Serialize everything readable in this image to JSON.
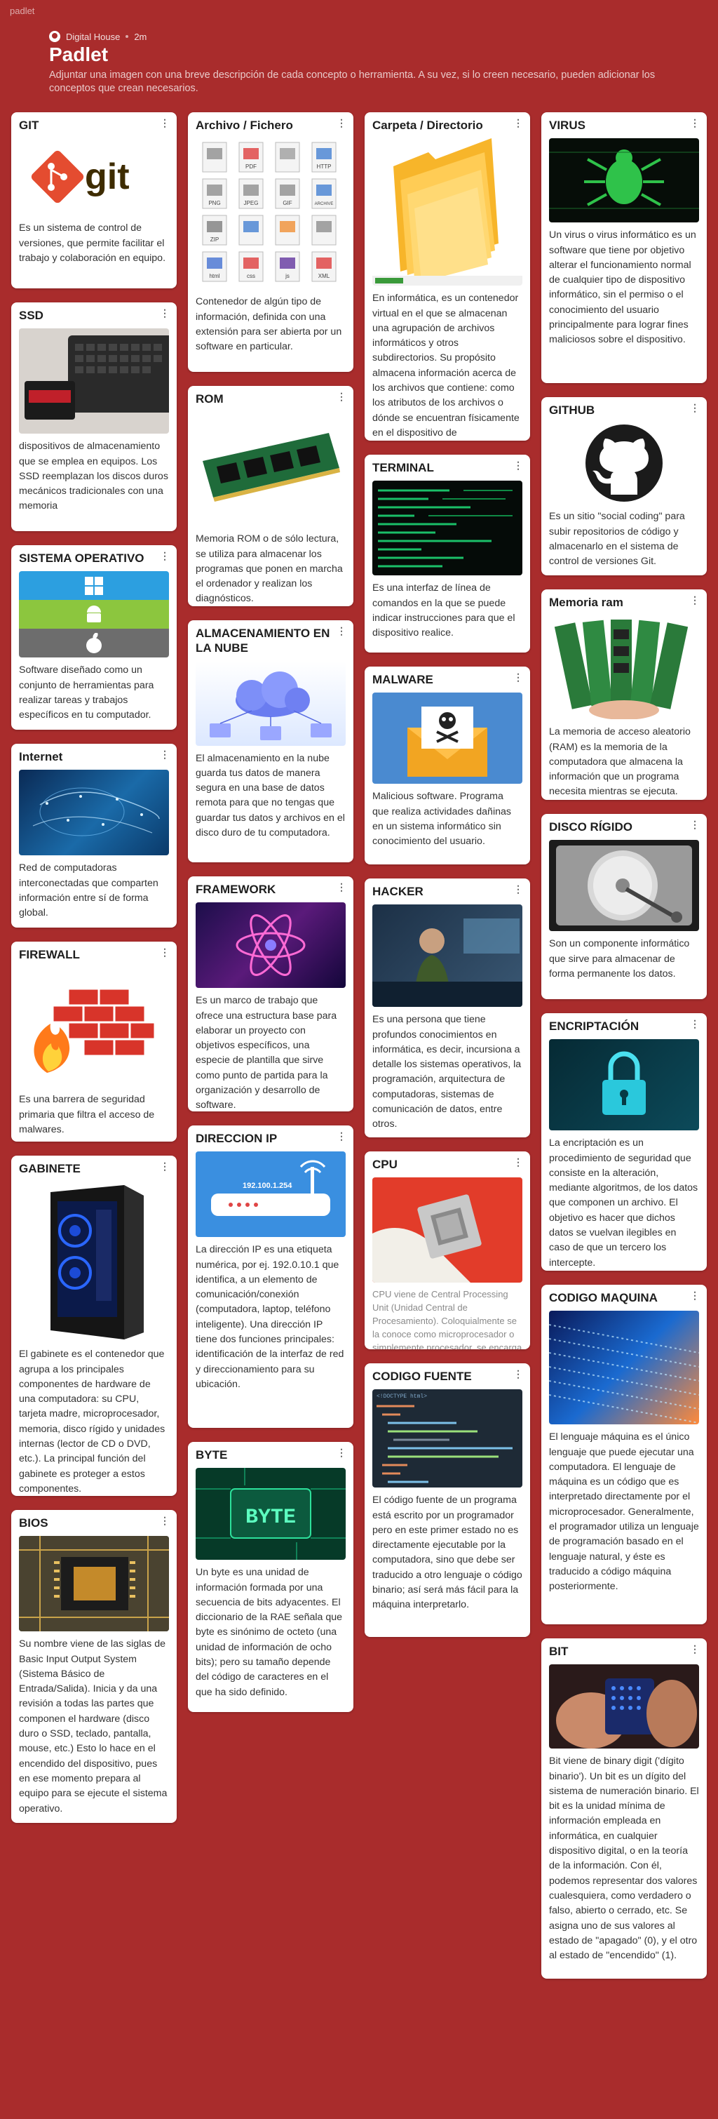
{
  "app": {
    "name": "padlet"
  },
  "header": {
    "author": "Digital House",
    "time": "2m",
    "title": "Padlet",
    "description": "Adjuntar una imagen con una breve descripción de cada concepto o herramienta. A su vez, si lo creen necesario, pueden adicionar los conceptos que crean necesarios."
  },
  "menu_glyph": "⋮",
  "theme": {
    "background": "#a92c2c",
    "card": "#ffffff"
  },
  "columns": [
    [
      {
        "title": "GIT",
        "text": "Es un sistema de control de versiones, que permite facilitar el trabajo y colaboración en equipo.",
        "image_text": "git"
      },
      {
        "title": "SSD",
        "text": " dispositivos de almacenamiento que se emplea en equipos. Los SSD reemplazan los discos duros mecánicos tradicionales con una memoria"
      },
      {
        "title": "SISTEMA OPERATIVO",
        "text": "Software diseñado como un conjunto de herramientas para realizar tareas y trabajos específicos en tu computador."
      },
      {
        "title": "Internet",
        "text": "Red de computadoras interconectadas que comparten información entre sí de forma global."
      },
      {
        "title": "FIREWALL",
        "text": "Es una barrera de seguridad primaria que filtra el acceso de malwares."
      },
      {
        "title": "GABINETE",
        "text": "El gabinete es el contenedor que agrupa a los principales componentes de hardware de una computadora: su CPU, tarjeta madre, microprocesador, memoria, disco rígido y unidades internas (lector de CD o DVD, etc.). La principal función del gabinete es proteger a estos componentes."
      },
      {
        "title": "BIOS",
        "text": "Su nombre viene de las siglas de Basic Input Output System (Sistema Básico de Entrada/Salida). Inicia y da una revisión a todas las partes que componen el hardware (disco duro o SSD, teclado, pantalla, mouse, etc.) Esto lo hace en el encendido del dispositivo, pues en ese momento prepara al equipo para se ejecute el sistema operativo."
      }
    ],
    [
      {
        "title": "Archivo / Fichero",
        "text": "Contenedor de algún tipo de información, definida con una extensión para ser abierta por un software en particular.",
        "file_labels": [
          "",
          "PDF",
          "",
          "HTTP",
          "PNG",
          "JPEG",
          "GIF",
          "ARCHIVE",
          "ZIP",
          "",
          "",
          "",
          "html",
          "css",
          "js",
          "XML"
        ]
      },
      {
        "title": "ROM",
        "text": "Memoria ROM o de sólo lectura, se utiliza para almacenar los programas que ponen en marcha el ordenador y realizan los diagnósticos."
      },
      {
        "title": "ALMACENAMIENTO EN LA NUBE",
        "text": "El almacenamiento en la nube guarda tus datos de manera segura en una base de datos remota para que no tengas que guardar tus datos y archivos en el disco duro de tu computadora."
      },
      {
        "title": "FRAMEWORK",
        "text": "Es un marco de trabajo que ofrece una estructura base para elaborar un proyecto con objetivos específicos, una especie de plantilla que sirve como punto de partida para la organización y desarrollo de software."
      },
      {
        "title": "DIRECCION IP",
        "text": "La dirección IP es una etiqueta numérica, por ej. 192.0.10.1 que identifica,  a un elemento de comunicación/conexión (computadora, laptop, teléfono inteligente). Una dirección IP tiene dos funciones principales: identificación de la interfaz de red y direccionamiento para su ubicación.",
        "image_text": "192.100.1.254"
      },
      {
        "title": "BYTE",
        "text": "Un byte es una unidad de información formada por una secuencia de bits adyacentes. El diccionario de la RAE señala que byte es sinónimo de octeto (una unidad de información de ocho bits); pero su tamaño depende del código de caracteres en el que ha sido definido.",
        "image_text": "BYTE"
      }
    ],
    [
      {
        "title": "Carpeta / Directorio",
        "text": "En informática, es un contenedor virtual en el que se almacenan una agrupación de archivos informáticos y otros subdirectorios. Su propósito almacena información acerca de los archivos que contiene: como los atributos de los archivos o dónde se encuentran físicamente en el dispositivo de almacenamiento."
      },
      {
        "title": "TERMINAL",
        "text": "Es una interfaz de línea de comandos en la que se puede indicar instrucciones para que el dispositivo realice."
      },
      {
        "title": "MALWARE",
        "text": "Malicious software. Programa que realiza actividades dañinas en un sistema informático sin conocimiento del usuario."
      },
      {
        "title": "HACKER",
        "text": "Es una persona que tiene profundos conocimientos en informática, es decir, incursiona a detalle los sistemas operativos, la programación, arquitectura de computadoras, sistemas de comunicación de datos, entre otros."
      },
      {
        "title": "CPU",
        "text": "CPU viene de Central Processing Unit (Unidad Central de Procesamiento). Coloquialmente se la conoce como microprocesador o simplemente procesador. se encarga"
      },
      {
        "title": "CODIGO FUENTE",
        "text": "El código fuente de un programa está escrito por un programador pero en este primer estado no es directamente ejecutable por la computadora, sino que debe ser traducido a otro lenguaje o código binario; así será más fácil para la máquina interpretarlo.",
        "image_text": "<!DOCTYPE html>"
      }
    ],
    [
      {
        "title": "VIRUS",
        "text": "Un virus o virus informático  es un software que tiene por objetivo alterar el funcionamiento normal de cualquier tipo de dispositivo informático, sin el permiso o el conocimiento del usuario principalmente para lograr fines maliciosos sobre el dispositivo."
      },
      {
        "title": "GITHUB",
        "text": "Es un sitio \"social coding\" para subir repositorios de código y almacenarlo en el sistema de control de versiones Git."
      },
      {
        "title": "Memoria ram",
        "text": "La memoria de acceso aleatorio (RAM) es la memoria de la computadora que almacena la información que un programa necesita mientras se ejecuta."
      },
      {
        "title": "DISCO RÍGIDO",
        "text": "Son un componente informático que sirve para almacenar de forma permanente los datos."
      },
      {
        "title": "ENCRIPTACIÓN",
        "text": " La encriptación es un procedimiento de seguridad que consiste en la alteración, mediante algoritmos, de los datos que componen un archivo. El objetivo es hacer que dichos datos se vuelvan ilegibles en caso de que un tercero los intercepte."
      },
      {
        "title": "CODIGO MAQUINA",
        "text": "El lenguaje máquina es el único lenguaje que puede ejecutar una computadora. El lenguaje de máquina es un código que es interpretado directamente por el microprocesador. Generalmente, el programador utiliza un lenguaje de programación basado en el lenguaje natural, y éste es traducido a código máquina posteriormente."
      },
      {
        "title": "BIT",
        "text": "Bit viene de binary digit ('dígito binario'). Un bit es un dígito del sistema de numeración binario. El bit es la unidad mínima de información empleada en informática, en cualquier dispositivo digital, o en la teoría de la información. Con él, podemos representar dos valores cualesquiera, como verdadero o falso, abierto o cerrado, etc. Se asigna uno de sus valores al estado de \"apagado\" (0), y el otro al estado de \"encendido\" (1)."
      }
    ]
  ]
}
